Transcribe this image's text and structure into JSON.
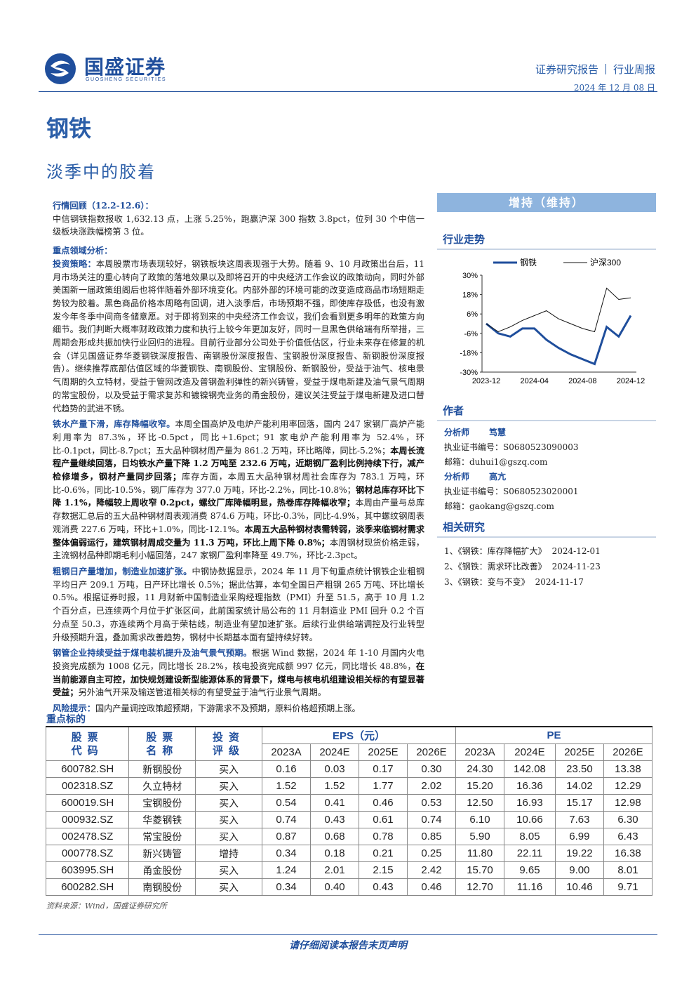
{
  "header": {
    "company": "国盛证券",
    "company_en": "GUOSHENG SECURITIES",
    "report_type": "证券研究报告",
    "report_kind": "行业周报",
    "date": "2024 年 12 月 08 日"
  },
  "title": "钢铁",
  "subtitle": "淡季中的胶着",
  "left": {
    "sections": [
      {
        "heading": "行情回顾（12.2-12.6）：",
        "paragraphs": [
          [
            {
              "text": "中信钢铁指数报收 1,632.13 点，上涨 5.25%，跑赢沪深 300 指数 3.8pct，位列 30 个中信一级板块涨跌幅榜第 3 位。"
            }
          ]
        ]
      },
      {
        "heading": "重点领域分析：",
        "paragraphs": [
          [
            {
              "text": "投资策略：",
              "style": "lead"
            },
            {
              "text": "本周股票市场表现较好，钢铁板块这周表现强于大势。随着 9、10 月政策出台后，11 月市场关注的重心转向了政策的落地效果以及即将召开的中央经济工作会议的政策动向，同时外部美国新一届政策组阁后也将伴随着外部环境变化。内部外部的环境可能的改变造成商品市场短期走势较为胶着。黑色商品价格本周略有回调，进入淡季后，市场预期不强，即使库存极低，也没有激发今年冬季中间商冬储意愿。对于即将到来的中央经济工作会议，我们会看到更多明年的政策方向细节。我们判断大概率财政政策力度和执行上较今年更加友好，同时一旦黑色供给端有所举措，三周期会形成共振加快行业回归的进程。目前行业部分公司处于价值低估区，行业未来存在修复的机会（详见国盛证券华菱钢铁深度报告、南钢股份深度报告、宝钢股份深度报告、新钢股份深度报告）。继续推荐底部估值区域的华菱钢铁、南钢股份、宝钢股份、新钢股份，受益于油气、核电景气周期的久立特材，受益于管网改造及普钢盈利弹性的新兴铸管，受益于煤电新建及油气景气周期的常宝股份，以及受益于需求复苏和镀镍钢壳业务的甬金股份，建议关注受益于煤电新建及进口替代趋势的武进不锈。"
            }
          ],
          [
            {
              "text": "铁水产量下滑，库存降幅收窄。",
              "style": "lead"
            },
            {
              "text": "本周全国高炉及电炉产能利用率回落，国内 247 家钢厂高炉产能利用率为 87.3%，环比-0.5pct，同比+1.6pct；91 家电炉产能利用率为 52.4%，环比-0.1pct，同比-8.7pct；五大品种钢材周产量为 861.2 万吨，环比略降，同比-5.2%；"
            },
            {
              "text": "本周长流程产量继续回落，日均铁水产量下降 1.2 万吨至 232.6 万吨，近期钢厂盈利比例持续下行，减产检修增多，钢材产量同步回落；",
              "style": "bold"
            },
            {
              "text": "库存方面，本周五大品种钢材周社会库存为 783.1 万吨，环比-0.6%，同比-10.5%，钢厂库存为 377.0 万吨，环比-2.2%，同比-10.8%；"
            },
            {
              "text": "钢材总库存环比下降 1.1%，降幅较上周收窄 0.2pct，螺纹厂库降幅明显，热卷库存降幅收窄；",
              "style": "bold"
            },
            {
              "text": "本周由产量与总库存数据汇总后的五大品种钢材周表观消费 874.6 万吨，环比-0.3%，同比-4.9%，其中螺纹钢周表观消费 227.6 万吨，环比+1.0%，同比-12.1%。"
            },
            {
              "text": "本周五大品种钢材表需转弱，淡季来临钢材需求整体偏弱运行，建筑钢材周成交量为 11.3 万吨，环比上周下降 0.8%；",
              "style": "bold"
            },
            {
              "text": "本周钢材现货价格走弱，主流钢材品种即期毛利小幅回落，247 家钢厂盈利率降至 49.7%，环比-2.3pct。"
            }
          ],
          [
            {
              "text": "粗钢日产量增加，制造业加速扩张。",
              "style": "lead"
            },
            {
              "text": "中钢协数据显示，2024 年 11 月下旬重点统计钢铁企业粗钢平均日产 209.1 万吨，日产环比增长 0.5%；据此估算，本旬全国日产粗钢 265 万吨、环比增长 0.5%。根据证券时报，11 月财新中国制造业采购经理指数（PMI）升至 51.5，高于 10 月 1.2 个百分点，已连续两个月位于扩张区间，此前国家统计局公布的 11 月制造业 PMI 回升 0.2 个百分点至 50.3，亦连续两个月高于荣枯线，制造业有望加速扩张。后续行业供给端调控及行业转型升级预期升温，叠加需求改善趋势，钢材中长期基本面有望持续好转。"
            }
          ],
          [
            {
              "text": "钢管企业持续受益于煤电装机提升及油气景气预期。",
              "style": "lead"
            },
            {
              "text": "根据 Wind 数据，2024 年 1-10 月国内火电投资完成额为 1008 亿元，同比增长 28.2%，核电投资完成额 997 亿元，同比增长 48.8%，"
            },
            {
              "text": "在当前能源自主可控，加快规划建设新型能源体系的背景下，煤电与核电机组建设相关标的有望显著受益；",
              "style": "bold"
            },
            {
              "text": "另外油气开采及输送管道相关标的有望受益于油气行业景气周期。"
            }
          ],
          [
            {
              "text": "风险提示：",
              "style": "lead"
            },
            {
              "text": "国内产量调控政策超预期，下游需求不及预期，原料价格超预期上涨。"
            }
          ]
        ]
      }
    ]
  },
  "right": {
    "rating": "增持（维持）",
    "trend_heading": "行业走势",
    "authors_heading": "作者",
    "analysts": [
      {
        "role": "分析师",
        "name": "笃慧",
        "cert": "执业证书编号：S0680523090003",
        "email": "邮箱：duhui1@gszq.com"
      },
      {
        "role": "分析师",
        "name": "高亢",
        "cert": "执业证书编号：S0680523020001",
        "email": "邮箱：gaokang@gszq.com"
      }
    ],
    "related_heading": "相关研究",
    "related": [
      {
        "title": "1、《钢铁：库存降幅扩大》",
        "date": "2024-12-01"
      },
      {
        "title": "2、《钢铁：需求环比改善》",
        "date": "2024-11-23"
      },
      {
        "title": "3、《钢铁：变与不变》",
        "date": "2024-11-17"
      }
    ]
  },
  "chart_data": {
    "type": "line",
    "x": [
      "2023-12",
      null,
      null,
      null,
      "2024-04",
      null,
      null,
      null,
      "2024-08",
      null,
      null,
      null,
      "2024-12"
    ],
    "series": [
      {
        "name": "钢铁",
        "color": "#1f4e9c",
        "values": [
          0,
          -6,
          -8,
          -3,
          -3,
          -10,
          -15,
          -19,
          -22,
          -25,
          -2,
          -8,
          5
        ]
      },
      {
        "name": "沪深300",
        "color": "#111111",
        "values": [
          0,
          -5,
          -2,
          2,
          5,
          8,
          3,
          0,
          -3,
          -5,
          22,
          15,
          16
        ]
      }
    ],
    "ylim": [
      -30,
      30
    ],
    "yticks": [
      {
        "value": 30,
        "label": "30%"
      },
      {
        "value": 18,
        "label": "18%"
      },
      {
        "value": 6,
        "label": "6%"
      },
      {
        "value": -6,
        "label": "-6%"
      },
      {
        "value": -18,
        "label": "-18%"
      },
      {
        "value": -30,
        "label": "-30%"
      }
    ]
  },
  "table": {
    "title": "重点标的",
    "col_code": "股票代码",
    "col_name": "股票名称",
    "col_rating": "投资评级",
    "eps_header": "EPS（元）",
    "pe_header": "PE",
    "eps_years": [
      "2023A",
      "2024E",
      "2025E",
      "2026E"
    ],
    "pe_years": [
      "2023A",
      "2024E",
      "2025E",
      "2026E"
    ],
    "rows": [
      [
        "600782.SH",
        "新钢股份",
        "买入",
        "0.16",
        "0.03",
        "0.17",
        "0.30",
        "24.30",
        "142.08",
        "23.50",
        "13.38"
      ],
      [
        "002318.SZ",
        "久立特材",
        "买入",
        "1.52",
        "1.52",
        "1.77",
        "2.02",
        "15.20",
        "16.36",
        "14.02",
        "12.29"
      ],
      [
        "600019.SH",
        "宝钢股份",
        "买入",
        "0.54",
        "0.41",
        "0.46",
        "0.53",
        "12.50",
        "16.93",
        "15.17",
        "12.98"
      ],
      [
        "000932.SZ",
        "华菱钢铁",
        "买入",
        "0.74",
        "0.43",
        "0.61",
        "0.74",
        "6.10",
        "10.66",
        "7.63",
        "6.30"
      ],
      [
        "002478.SZ",
        "常宝股份",
        "买入",
        "0.87",
        "0.68",
        "0.78",
        "0.85",
        "5.90",
        "8.05",
        "6.99",
        "6.43"
      ],
      [
        "000778.SZ",
        "新兴铸管",
        "增持",
        "0.34",
        "0.18",
        "0.21",
        "0.25",
        "11.80",
        "22.11",
        "19.22",
        "16.38"
      ],
      [
        "603995.SH",
        "甬金股份",
        "买入",
        "1.24",
        "2.01",
        "2.15",
        "2.42",
        "15.70",
        "9.65",
        "9.00",
        "8.01"
      ],
      [
        "600282.SH",
        "南钢股份",
        "买入",
        "0.34",
        "0.40",
        "0.43",
        "0.46",
        "12.70",
        "11.16",
        "10.46",
        "9.71"
      ]
    ],
    "source": "资料来源：Wind，国盛证券研究所"
  },
  "footer": "请仔细阅读本报告末页声明"
}
